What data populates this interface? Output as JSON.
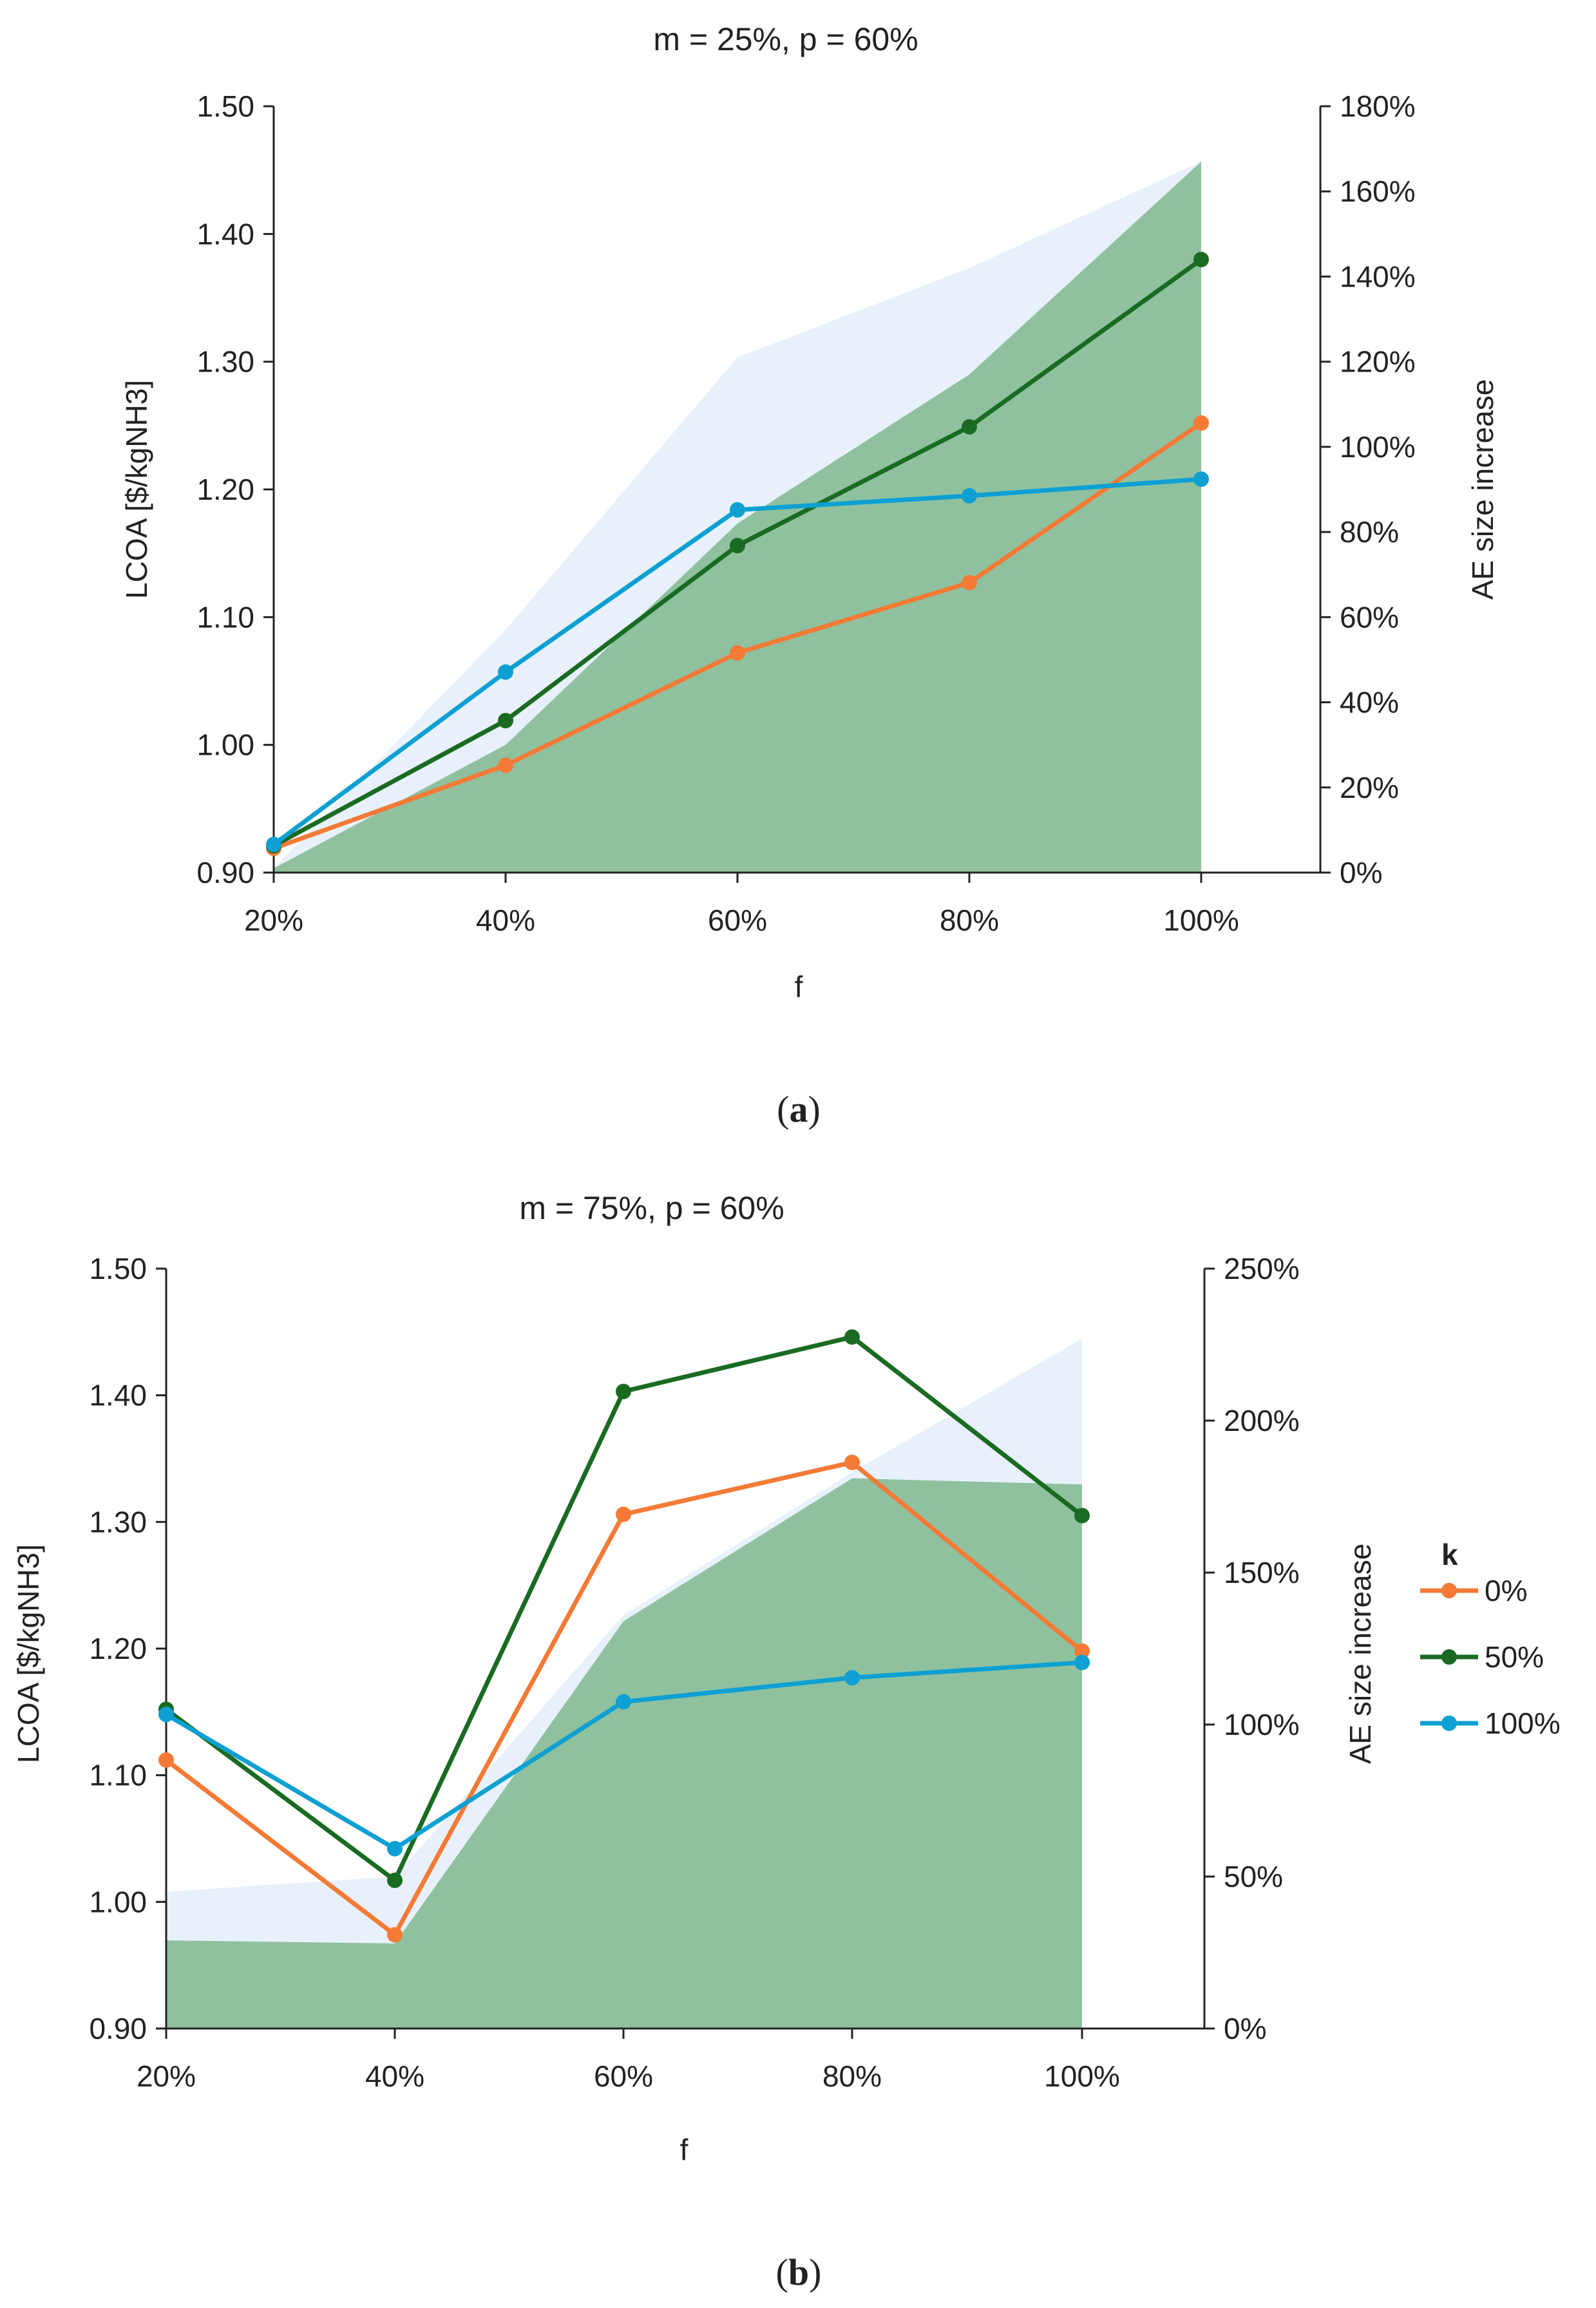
{
  "chart_data": [
    {
      "type": "line",
      "title": "m = 25%, p = 60%",
      "caption_label": "a",
      "xlabel": "f",
      "ylabel": "LCOA [$/kgNH3]",
      "y2label": "AE size increase",
      "categories": [
        "20%",
        "40%",
        "60%",
        "80%",
        "100%"
      ],
      "ylim": [
        0.9,
        1.5
      ],
      "y_ticks": [
        "0.90",
        "1.00",
        "1.10",
        "1.20",
        "1.30",
        "1.40",
        "1.50"
      ],
      "y2lim": [
        0,
        180
      ],
      "y2_ticks": [
        "0%",
        "20%",
        "40%",
        "60%",
        "80%",
        "100%",
        "120%",
        "140%",
        "160%",
        "180%"
      ],
      "series": [
        {
          "name": "0%",
          "color": "#f47a36",
          "values": [
            0.919,
            0.984,
            1.072,
            1.127,
            1.252
          ]
        },
        {
          "name": "50%",
          "color": "#1a6b22",
          "values": [
            0.921,
            1.019,
            1.156,
            1.249,
            1.38
          ]
        },
        {
          "name": "100%",
          "color": "#0ea0d2",
          "values": [
            0.922,
            1.057,
            1.184,
            1.195,
            1.208
          ]
        }
      ],
      "area_series": [
        {
          "name": "AE size increase (k = 100%)",
          "color": "#e8f1fb",
          "values": [
            1,
            57,
            121,
            142,
            167
          ]
        },
        {
          "name": "AE size increase (k = 50%)",
          "color": "#8fc19f",
          "values": [
            1,
            30,
            82,
            117,
            167
          ]
        }
      ]
    },
    {
      "type": "line",
      "title": "m = 75%, p = 60%",
      "caption_label": "b",
      "xlabel": "f",
      "ylabel": "LCOA [$/kgNH3]",
      "y2label": "AE size increase",
      "categories": [
        "20%",
        "40%",
        "60%",
        "80%",
        "100%"
      ],
      "ylim": [
        0.9,
        1.5
      ],
      "y_ticks": [
        "0.90",
        "1.00",
        "1.10",
        "1.20",
        "1.30",
        "1.40",
        "1.50"
      ],
      "y2lim": [
        0,
        250
      ],
      "y2_ticks": [
        "0%",
        "50%",
        "100%",
        "150%",
        "200%",
        "250%"
      ],
      "series": [
        {
          "name": "0%",
          "color": "#f47a36",
          "values": [
            1.112,
            0.974,
            1.306,
            1.347,
            1.198
          ]
        },
        {
          "name": "50%",
          "color": "#1a6b22",
          "values": [
            1.152,
            1.017,
            1.403,
            1.446,
            1.305
          ]
        },
        {
          "name": "100%",
          "color": "#0ea0d2",
          "values": [
            1.148,
            1.042,
            1.158,
            1.177,
            1.189
          ]
        }
      ],
      "area_series": [
        {
          "name": "AE size increase (k = 100%)",
          "color": "#e8f1fb",
          "values": [
            45,
            50,
            136,
            183,
            227
          ]
        },
        {
          "name": "AE size increase (k = 50%)",
          "color": "#8fc19f",
          "values": [
            29,
            28,
            134,
            181,
            179
          ]
        }
      ],
      "legend": {
        "title": "k",
        "entries": [
          "0%",
          "50%",
          "100%"
        ],
        "position": "right"
      }
    }
  ]
}
